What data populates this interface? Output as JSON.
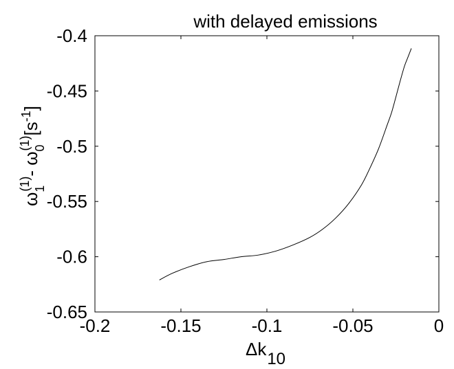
{
  "chart_data": {
    "type": "line",
    "title": "with delayed emissions",
    "xlabel": "Δk",
    "xlabel_subscript": "10",
    "ylabel": {
      "omega": "ω",
      "sub1": "1",
      "sup1": "(1)",
      "dash": "- ",
      "sub0": "0",
      "sup0": "(1)",
      "unit_open": "[s",
      "unit_sup": "-1",
      "unit_close": "]"
    },
    "xlim": [
      -0.2,
      0
    ],
    "ylim": [
      -0.65,
      -0.4
    ],
    "xticks": [
      -0.2,
      -0.15,
      -0.1,
      -0.05,
      0
    ],
    "xtick_labels": [
      "-0.2",
      "-0.15",
      "-0.1",
      "-0.05",
      "0"
    ],
    "yticks": [
      -0.4,
      -0.45,
      -0.5,
      -0.55,
      -0.6,
      -0.65
    ],
    "ytick_labels": [
      "-0.4",
      "-0.45",
      "-0.5",
      "-0.55",
      "-0.6",
      "-0.65"
    ],
    "grid": false,
    "legend": "none",
    "line_color": "#000000",
    "series": [
      {
        "x": [
          -0.1625,
          -0.155,
          -0.145,
          -0.135,
          -0.125,
          -0.115,
          -0.105,
          -0.095,
          -0.085,
          -0.075,
          -0.0675,
          -0.06,
          -0.0525,
          -0.045,
          -0.04,
          -0.035,
          -0.03,
          -0.0275,
          -0.025,
          -0.0225,
          -0.02,
          -0.018,
          -0.016
        ],
        "y": [
          -0.621,
          -0.615,
          -0.609,
          -0.6045,
          -0.6025,
          -0.6,
          -0.5985,
          -0.595,
          -0.5895,
          -0.5825,
          -0.575,
          -0.565,
          -0.552,
          -0.535,
          -0.5195,
          -0.502,
          -0.4805,
          -0.4695,
          -0.4555,
          -0.441,
          -0.4275,
          -0.4195,
          -0.4115
        ]
      }
    ]
  }
}
